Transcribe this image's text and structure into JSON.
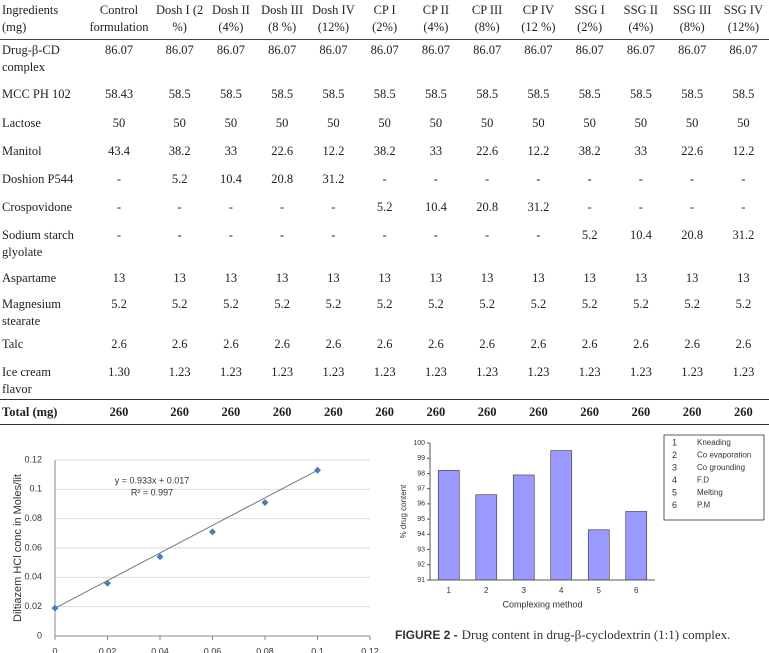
{
  "table": {
    "header": [
      "Ingredients (mg)",
      "Control formulation",
      "Dosh I (2 %)",
      "Dosh II (4%)",
      "Dosh III (8 %)",
      "Dosh IV (12%)",
      "CP I (2%)",
      "CP II (4%)",
      "CP III (8%)",
      "CP IV (12 %)",
      "SSG I (2%)",
      "SSG II (4%)",
      "SSG III (8%)",
      "SSG IV (12%)"
    ],
    "rows": [
      [
        "Drug-β-CD complex",
        "86.07",
        "86.07",
        "86.07",
        "86.07",
        "86.07",
        "86.07",
        "86.07",
        "86.07",
        "86.07",
        "86.07",
        "86.07",
        "86.07",
        "86.07"
      ],
      [
        "MCC PH 102",
        "58.43",
        "58.5",
        "58.5",
        "58.5",
        "58.5",
        "58.5",
        "58.5",
        "58.5",
        "58.5",
        "58.5",
        "58.5",
        "58.5",
        "58.5"
      ],
      [
        "Lactose",
        "50",
        "50",
        "50",
        "50",
        "50",
        "50",
        "50",
        "50",
        "50",
        "50",
        "50",
        "50",
        "50"
      ],
      [
        "Manitol",
        "43.4",
        "38.2",
        "33",
        "22.6",
        "12.2",
        "38.2",
        "33",
        "22.6",
        "12.2",
        "38.2",
        "33",
        "22.6",
        "12.2"
      ],
      [
        "Doshion P544",
        "-",
        "5.2",
        "10.4",
        "20.8",
        "31.2",
        "-",
        "-",
        "-",
        "-",
        "-",
        "-",
        "-",
        "-"
      ],
      [
        "Crospovidone",
        "-",
        "-",
        "-",
        "-",
        "-",
        "5.2",
        "10.4",
        "20.8",
        "31.2",
        "-",
        "-",
        "-",
        "-"
      ],
      [
        "Sodium starch glyolate",
        "-",
        "-",
        "-",
        "-",
        "-",
        "-",
        "-",
        "-",
        "-",
        "5.2",
        "10.4",
        "20.8",
        "31.2"
      ],
      [
        "Aspartame",
        "13",
        "13",
        "13",
        "13",
        "13",
        "13",
        "13",
        "13",
        "13",
        "13",
        "13",
        "13",
        "13"
      ],
      [
        "Magnesium stearate",
        "5.2",
        "5.2",
        "5.2",
        "5.2",
        "5.2",
        "5.2",
        "5.2",
        "5.2",
        "5.2",
        "5.2",
        "5.2",
        "5.2",
        "5.2"
      ],
      [
        "Talc",
        "2.6",
        "2.6",
        "2.6",
        "2.6",
        "2.6",
        "2.6",
        "2.6",
        "2.6",
        "2.6",
        "2.6",
        "2.6",
        "2.6",
        "2.6"
      ],
      [
        "Ice cream flavor",
        "1.30",
        "1.23",
        "1.23",
        "1.23",
        "1.23",
        "1.23",
        "1.23",
        "1.23",
        "1.23",
        "1.23",
        "1.23",
        "1.23",
        "1.23"
      ],
      [
        "Total (mg)",
        "260",
        "260",
        "260",
        "260",
        "260",
        "260",
        "260",
        "260",
        "260",
        "260",
        "260",
        "260",
        "260"
      ]
    ]
  },
  "chart_data": [
    {
      "type": "scatter",
      "y_label": "Diltiazem HCl conc in Moles/lit",
      "annotations": [
        "y = 0.933x + 0.017",
        "R² = 0.997"
      ],
      "x": [
        0,
        0.02,
        0.04,
        0.06,
        0.08,
        0.1
      ],
      "values": [
        0.019,
        0.036,
        0.054,
        0.071,
        0.091,
        0.113
      ],
      "color": "#4a7ebb",
      "trendline": true,
      "grid": true,
      "xlim": [
        0,
        0.12
      ],
      "ylim": [
        0,
        0.12
      ],
      "xticks": [
        0,
        0.02,
        0.04,
        0.06,
        0.08,
        0.1,
        0.12
      ],
      "yticks": [
        0,
        0.02,
        0.04,
        0.06,
        0.08,
        0.1,
        0.12
      ]
    },
    {
      "type": "bar",
      "x_label": "Complexing method",
      "y_label": "% drug content",
      "categories": [
        "1",
        "2",
        "3",
        "4",
        "5",
        "6"
      ],
      "values": [
        98.2,
        96.6,
        97.9,
        99.5,
        94.3,
        95.5
      ],
      "color": "#9999ff",
      "ylim": [
        91,
        100
      ],
      "yticks": [
        91,
        92,
        93,
        94,
        95,
        96,
        97,
        98,
        99,
        100
      ],
      "legend": [
        {
          "key": "1",
          "label": "Kneading"
        },
        {
          "key": "2",
          "label": "Co evaporation"
        },
        {
          "key": "3",
          "label": "Co grounding"
        },
        {
          "key": "4",
          "label": "F.D"
        },
        {
          "key": "5",
          "label": "Melting"
        },
        {
          "key": "6",
          "label": "P.M"
        }
      ],
      "caption_label": "FIGURE 2 -",
      "caption": "Drug content in drug-β-cyclodextrin (1:1) complex."
    }
  ]
}
